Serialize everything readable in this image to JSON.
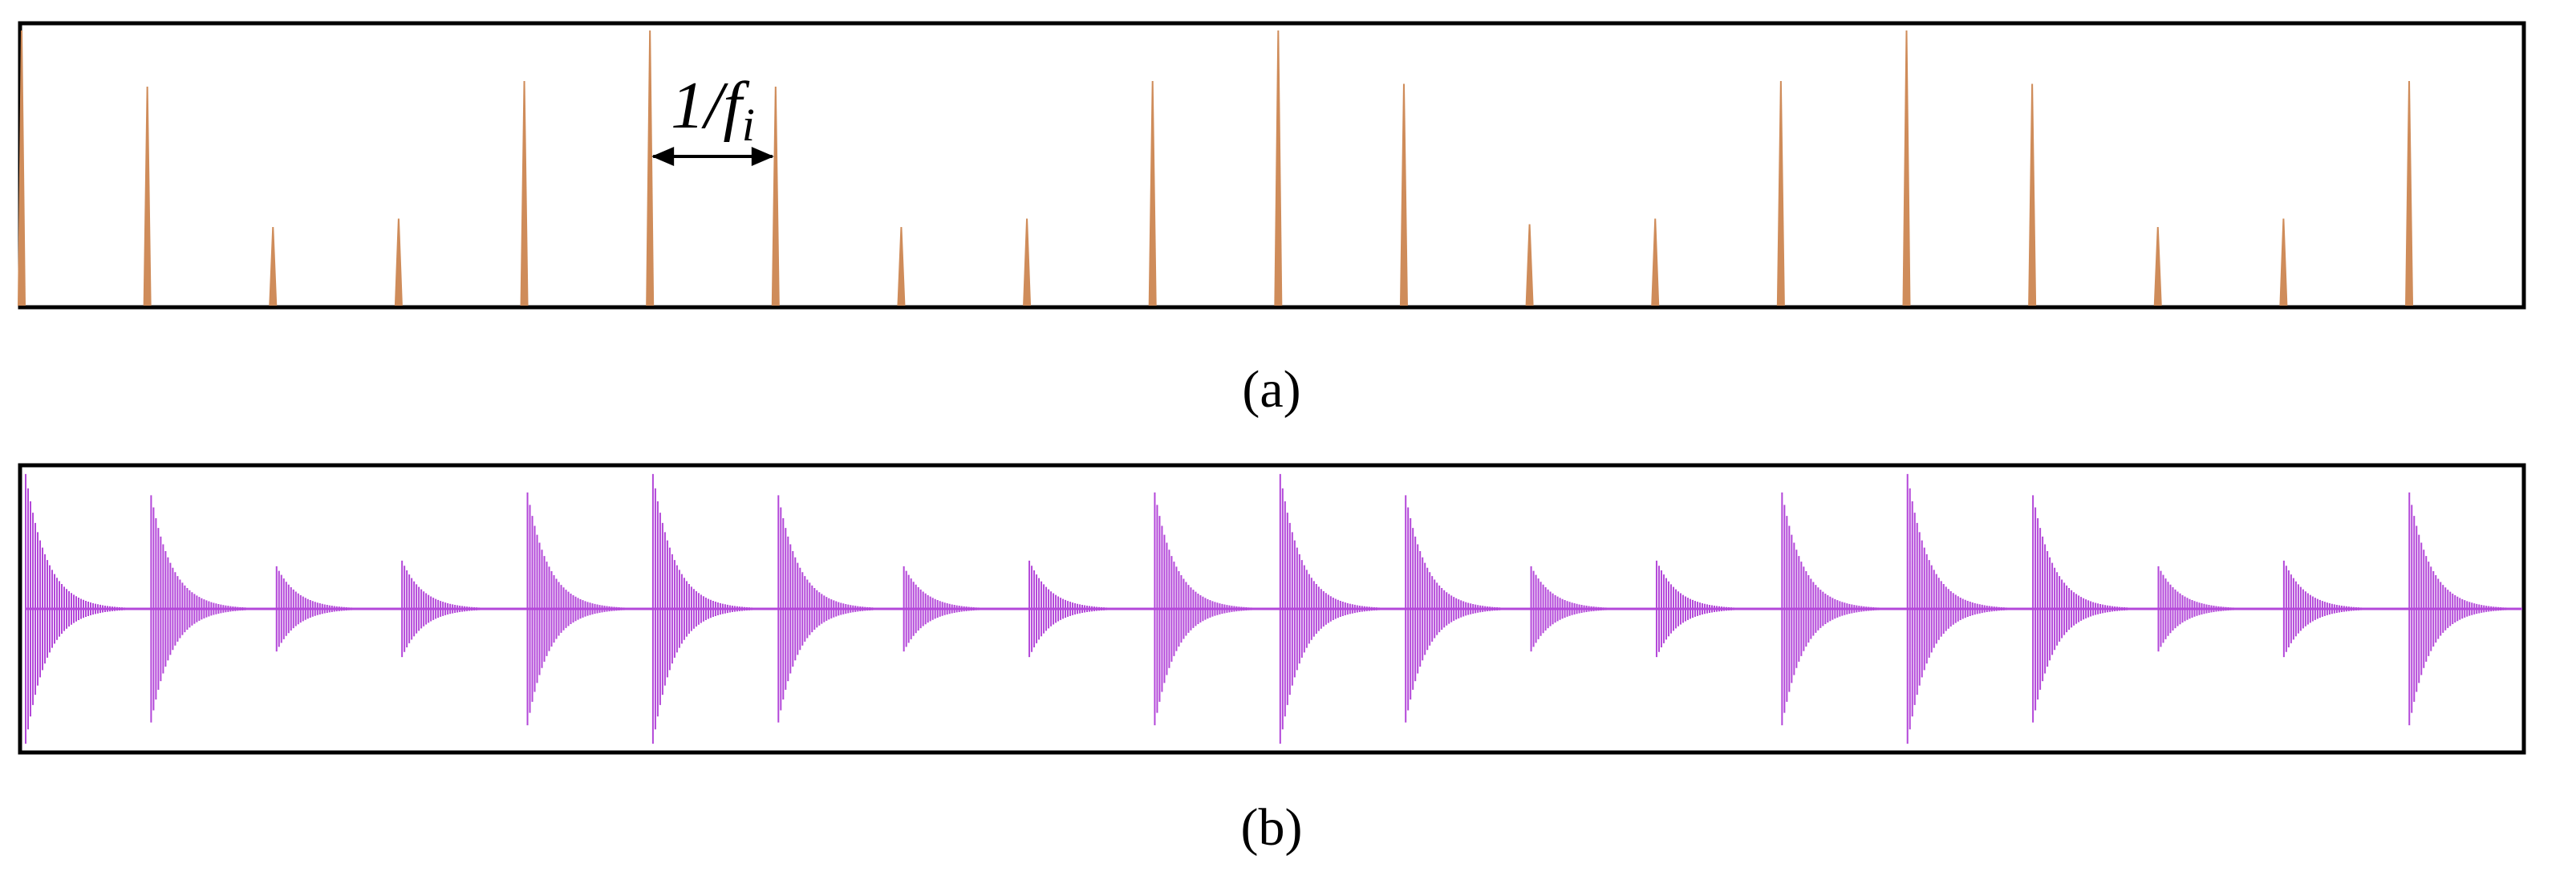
{
  "chart_data": [
    {
      "type": "spikes",
      "caption": "(a)",
      "color": "#cf8c5a",
      "x": [
        0,
        1,
        2,
        3,
        4,
        5,
        6,
        7,
        8,
        9,
        10,
        11,
        12,
        13,
        14,
        15,
        16,
        17,
        18,
        19
      ],
      "values": [
        0.98,
        0.78,
        0.28,
        0.31,
        0.8,
        0.98,
        0.78,
        0.28,
        0.31,
        0.8,
        0.98,
        0.79,
        0.29,
        0.31,
        0.8,
        0.98,
        0.79,
        0.28,
        0.31,
        0.8
      ],
      "xlim": [
        0,
        19.9
      ],
      "ylim": [
        0,
        1
      ],
      "annotation": {
        "text": "1/f",
        "subscript": "i"
      }
    },
    {
      "type": "bursts",
      "caption": "(b)",
      "color": "#b347d9",
      "x": [
        0,
        1,
        2,
        3,
        4,
        5,
        6,
        7,
        8,
        9,
        10,
        11,
        12,
        13,
        14,
        15,
        16,
        17,
        18,
        19
      ],
      "values": [
        0.95,
        0.8,
        0.3,
        0.34,
        0.82,
        0.95,
        0.8,
        0.3,
        0.34,
        0.82,
        0.95,
        0.8,
        0.3,
        0.34,
        0.82,
        0.95,
        0.8,
        0.3,
        0.34,
        0.82
      ],
      "xlim": [
        0,
        19.9
      ],
      "ylim": [
        -1,
        1
      ]
    }
  ]
}
